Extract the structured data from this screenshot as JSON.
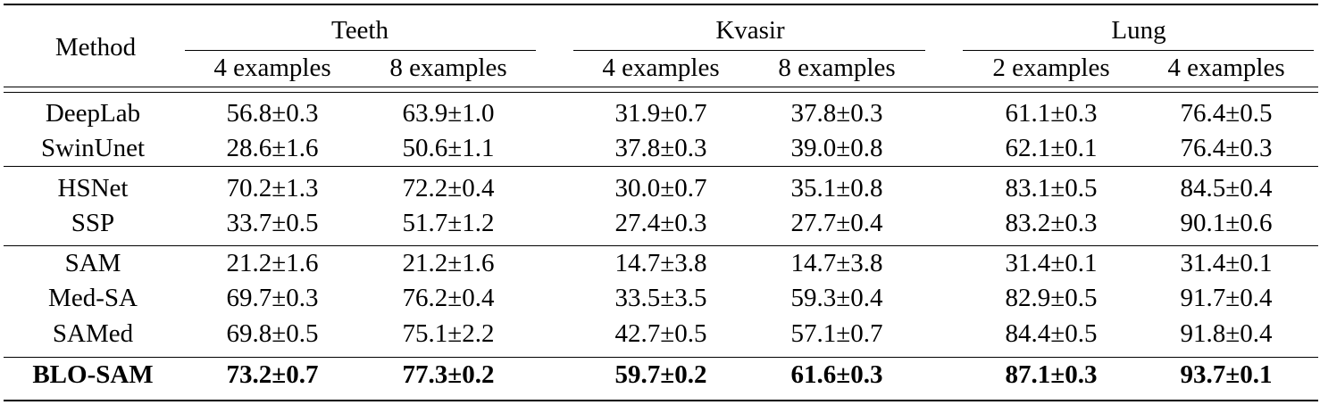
{
  "table": {
    "method_header": "Method",
    "groups": [
      {
        "name": "Teeth",
        "cols": [
          "4 examples",
          "8 examples"
        ]
      },
      {
        "name": "Kvasir",
        "cols": [
          "4 examples",
          "8 examples"
        ]
      },
      {
        "name": "Lung",
        "cols": [
          "2 examples",
          "4 examples"
        ]
      }
    ],
    "rows": [
      {
        "method": "DeepLab",
        "values": [
          "56.8±0.3",
          "63.9±1.0",
          "31.9±0.7",
          "37.8±0.3",
          "61.1±0.3",
          "76.4±0.5"
        ]
      },
      {
        "method": "SwinUnet",
        "values": [
          "28.6±1.6",
          "50.6±1.1",
          "37.8±0.3",
          "39.0±0.8",
          "62.1±0.1",
          "76.4±0.3"
        ]
      },
      {
        "method": "HSNet",
        "values": [
          "70.2±1.3",
          "72.2±0.4",
          "30.0±0.7",
          "35.1±0.8",
          "83.1±0.5",
          "84.5±0.4"
        ]
      },
      {
        "method": "SSP",
        "values": [
          "33.7±0.5",
          "51.7±1.2",
          "27.4±0.3",
          "27.7±0.4",
          "83.2±0.3",
          "90.1±0.6"
        ]
      },
      {
        "method": "SAM",
        "values": [
          "21.2±1.6",
          "21.2±1.6",
          "14.7±3.8",
          "14.7±3.8",
          "31.4±0.1",
          "31.4±0.1"
        ]
      },
      {
        "method": "Med-SA",
        "values": [
          "69.7±0.3",
          "76.2±0.4",
          "33.5±3.5",
          "59.3±0.4",
          "82.9±0.5",
          "91.7±0.4"
        ]
      },
      {
        "method": "SAMed",
        "values": [
          "69.8±0.5",
          "75.1±2.2",
          "42.7±0.5",
          "57.1±0.7",
          "84.4±0.5",
          "91.8±0.4"
        ]
      },
      {
        "method": "BLO-SAM",
        "values": [
          "73.2±0.7",
          "77.3±0.2",
          "59.7±0.2",
          "61.6±0.3",
          "87.1±0.3",
          "93.7±0.1"
        ],
        "bold": true
      }
    ]
  }
}
